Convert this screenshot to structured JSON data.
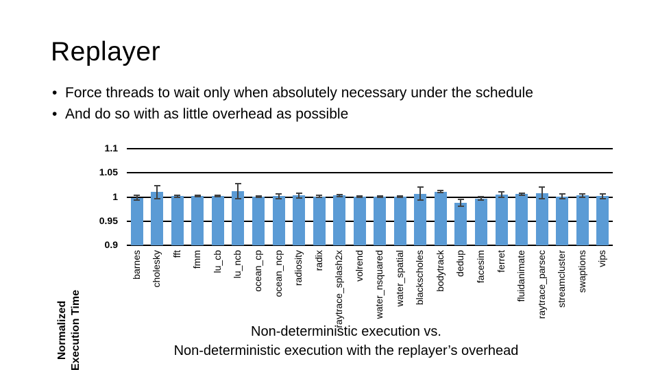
{
  "slide": {
    "title": "Replayer",
    "bullet_char": "•",
    "bullets": [
      "Force threads to wait only when absolutely necessary under the schedule",
      "And do so with as little overhead as possible"
    ]
  },
  "chart_data": {
    "type": "bar",
    "title": "",
    "ylabel_lines": [
      "Normalized",
      "Execution Time"
    ],
    "xlabel_lines": [
      "Non-deterministic execution vs.",
      "Non-deterministic execution with the replayer’s overhead"
    ],
    "ylim": [
      0.9,
      1.1
    ],
    "yticks": [
      1.1,
      1.05,
      1.0,
      0.95,
      0.9
    ],
    "ytick_labels": [
      "1.1",
      "1.05",
      "1",
      "0.95",
      "0.9"
    ],
    "grid": "horizontal",
    "legend": false,
    "bar_color": "#5B9BD5",
    "error_bar_color": "#404040",
    "categories": [
      "barnes",
      "cholesky",
      "fft",
      "fmm",
      "lu_cb",
      "lu_ncb",
      "ocean_cp",
      "ocean_ncp",
      "radiosity",
      "radix",
      "raytrace_splash2x",
      "volrend",
      "water_nsquared",
      "water_spatial",
      "blackscholes",
      "bodytrack",
      "dedup",
      "facesim",
      "ferret",
      "fluidanimate",
      "raytrace_parsec",
      "streamcluster",
      "swaptions",
      "vips"
    ],
    "values": [
      0.998,
      1.01,
      1.002,
      1.002,
      1.002,
      1.012,
      1.001,
      1.002,
      1.003,
      1.001,
      1.003,
      1.001,
      1.001,
      1.001,
      1.007,
      1.011,
      0.988,
      0.997,
      1.005,
      1.006,
      1.008,
      1.001,
      1.003,
      1.002
    ],
    "errors": [
      0.005,
      0.014,
      0.002,
      0.001,
      0.001,
      0.015,
      0.001,
      0.005,
      0.005,
      0.002,
      0.002,
      0.001,
      0.001,
      0.001,
      0.014,
      0.002,
      0.007,
      0.004,
      0.005,
      0.002,
      0.012,
      0.005,
      0.003,
      0.005
    ]
  }
}
